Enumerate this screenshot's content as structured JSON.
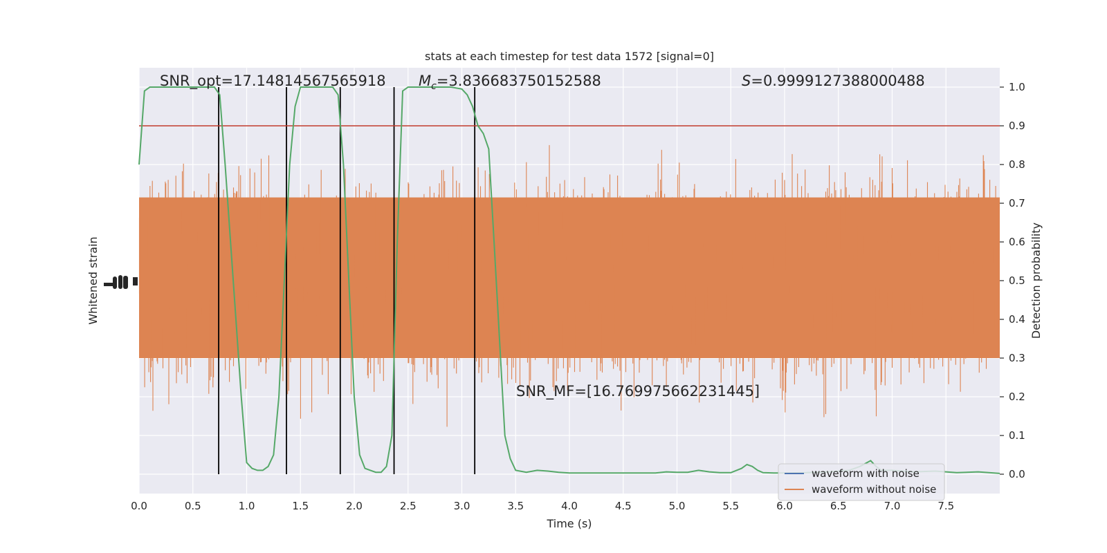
{
  "chart_data": {
    "type": "line",
    "title": "stats at each timestep for test data 1572 [signal=0]",
    "xlabel": "Time (s)",
    "ylabel_left": "Whitened strain",
    "ylabel_right": "Detection probability",
    "xlim": [
      0,
      8
    ],
    "ylim_right": [
      -0.05,
      1.05
    ],
    "x_ticks": [
      "0.0",
      "0.5",
      "1.0",
      "1.5",
      "2.0",
      "2.5",
      "3.0",
      "3.5",
      "4.0",
      "4.5",
      "5.0",
      "5.5",
      "6.0",
      "6.5",
      "7.0",
      "7.5"
    ],
    "y_right_ticks": [
      "0.0",
      "0.1",
      "0.2",
      "0.3",
      "0.4",
      "0.5",
      "0.6",
      "0.7",
      "0.8",
      "0.9",
      "1.0"
    ],
    "grid": true,
    "annotations": {
      "snr_opt": "SNR_opt=17.14814567565918",
      "mc_symbol": "M",
      "mc_sub": "c",
      "mc_value": "=3.836683750152588",
      "s_symbol": "S",
      "s_value": "=0.9999127388000488",
      "snr_mf": "SNR_MF=[16.769975662231445]"
    },
    "threshold": {
      "value": 0.9,
      "color": "#c0392b"
    },
    "vertical_lines": [
      0.74,
      1.37,
      1.87,
      2.37,
      3.12
    ],
    "legend": {
      "position": "lower-right",
      "entries": [
        {
          "label": "waveform with noise",
          "color": "#4c72b0"
        },
        {
          "label": "waveform without noise",
          "color": "#dd8452"
        }
      ]
    },
    "series": [
      {
        "kind": "detection-probability",
        "color": "#55a868",
        "x": [
          0.0,
          0.05,
          0.1,
          0.2,
          0.3,
          0.4,
          0.5,
          0.55,
          0.6,
          0.65,
          0.7,
          0.75,
          0.8,
          0.85,
          0.9,
          0.95,
          1.0,
          1.05,
          1.1,
          1.15,
          1.2,
          1.25,
          1.3,
          1.35,
          1.4,
          1.45,
          1.5,
          1.6,
          1.7,
          1.8,
          1.85,
          1.9,
          1.95,
          2.0,
          2.05,
          2.1,
          2.15,
          2.2,
          2.25,
          2.3,
          2.35,
          2.4,
          2.45,
          2.5,
          2.6,
          2.7,
          2.8,
          2.9,
          3.0,
          3.05,
          3.1,
          3.15,
          3.2,
          3.25,
          3.3,
          3.35,
          3.4,
          3.45,
          3.5,
          3.6,
          3.7,
          3.8,
          3.9,
          4.0,
          4.2,
          4.5,
          4.8,
          4.9,
          5.0,
          5.1,
          5.2,
          5.3,
          5.4,
          5.5,
          5.6,
          5.65,
          5.7,
          5.75,
          5.8,
          5.9,
          6.0,
          6.2,
          6.4,
          6.6,
          6.7,
          6.8,
          6.85,
          6.9,
          7.0,
          7.2,
          7.4,
          7.6,
          7.8,
          8.0
        ],
        "y": [
          0.8,
          0.99,
          1.0,
          1.0,
          1.0,
          1.0,
          1.0,
          1.0,
          1.0,
          1.0,
          1.0,
          0.98,
          0.8,
          0.6,
          0.4,
          0.2,
          0.03,
          0.015,
          0.01,
          0.01,
          0.02,
          0.05,
          0.2,
          0.5,
          0.8,
          0.95,
          1.0,
          1.0,
          1.0,
          1.0,
          0.98,
          0.8,
          0.5,
          0.2,
          0.05,
          0.015,
          0.01,
          0.005,
          0.005,
          0.02,
          0.1,
          0.6,
          0.99,
          1.0,
          1.0,
          1.0,
          1.0,
          1.0,
          0.995,
          0.98,
          0.95,
          0.9,
          0.88,
          0.84,
          0.6,
          0.35,
          0.1,
          0.04,
          0.01,
          0.005,
          0.01,
          0.008,
          0.005,
          0.003,
          0.003,
          0.003,
          0.003,
          0.006,
          0.005,
          0.005,
          0.01,
          0.006,
          0.004,
          0.004,
          0.015,
          0.025,
          0.02,
          0.01,
          0.004,
          0.003,
          0.003,
          0.004,
          0.006,
          0.01,
          0.02,
          0.035,
          0.02,
          0.01,
          0.01,
          0.006,
          0.008,
          0.004,
          0.006,
          0.002
        ]
      }
    ]
  }
}
